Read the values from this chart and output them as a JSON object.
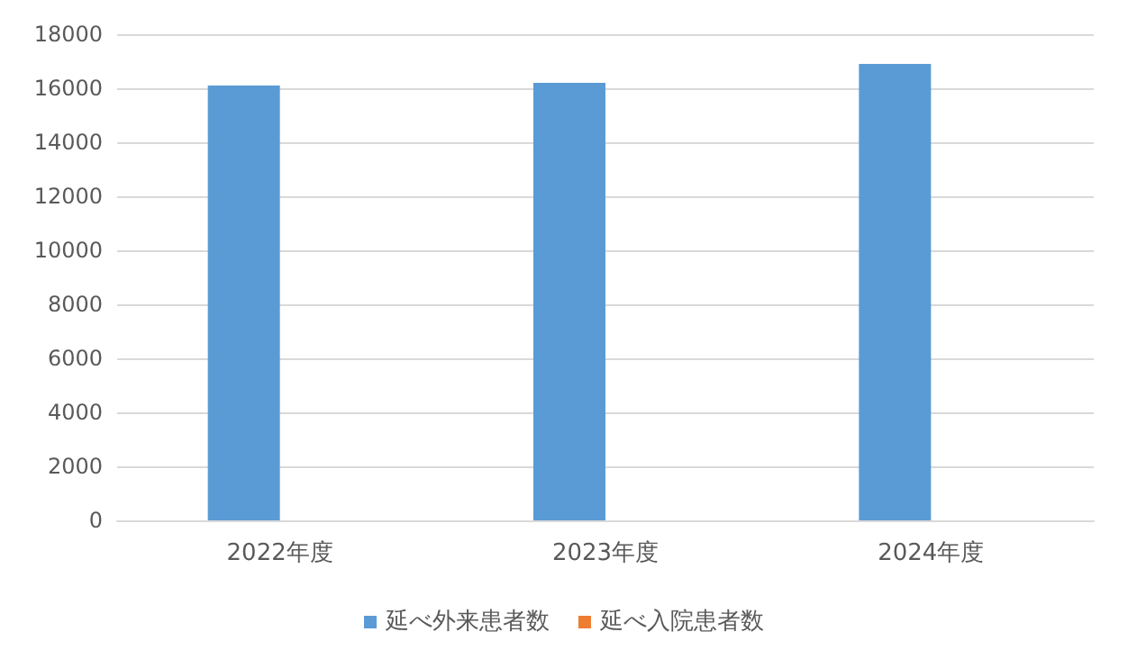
{
  "chart_data": {
    "type": "bar",
    "categories": [
      "2022年度",
      "2023年度",
      "2024年度"
    ],
    "series": [
      {
        "name": "延べ外来患者数",
        "color": "#5b9bd5",
        "values": [
          16100,
          16200,
          16900
        ]
      },
      {
        "name": "延べ入院患者数",
        "color": "#ed7d31",
        "values": [
          null,
          null,
          null
        ]
      }
    ],
    "ylim": [
      0,
      18000
    ],
    "yticks": [
      0,
      2000,
      4000,
      6000,
      8000,
      10000,
      12000,
      14000,
      16000,
      18000
    ],
    "grid": "y",
    "legend": "bottom"
  }
}
